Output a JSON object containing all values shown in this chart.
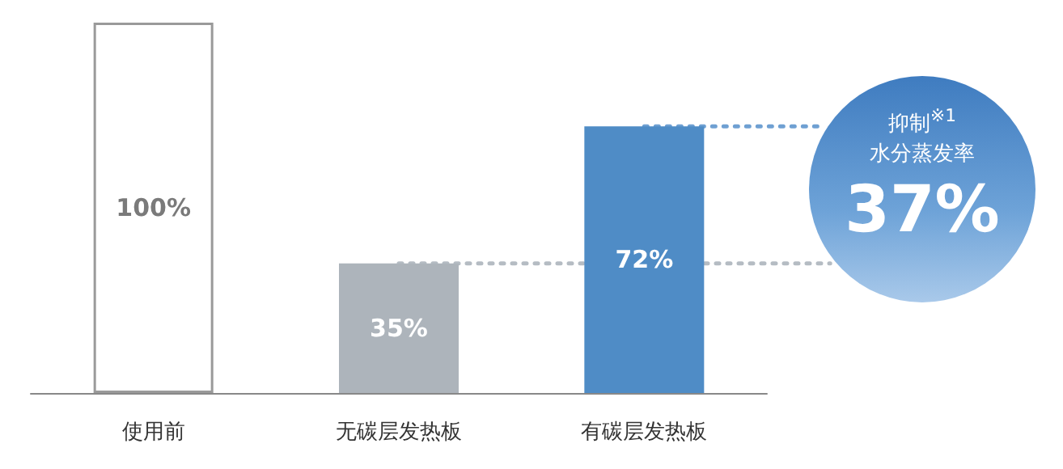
{
  "chart_data": {
    "type": "bar",
    "categories": [
      "使用前",
      "无碳层发热板",
      "有碳层发热板"
    ],
    "values": [
      100,
      35,
      72
    ],
    "colors": [
      "#ffffff",
      "#adb4bb",
      "#4f8cc6"
    ],
    "value_labels": [
      "100%",
      "35%",
      "72%"
    ],
    "ylim": [
      0,
      100
    ],
    "tick_labels": "x",
    "ref_lines": [
      {
        "axis": "y",
        "value": 72,
        "color": "#6fa0d2",
        "line_style": "dotted"
      },
      {
        "axis": "y",
        "value": 35,
        "color": "#b5bcc3",
        "line_style": "dotted"
      }
    ],
    "annotations": [
      "抑制$^{※1}$",
      "水分蒸发率",
      "37%"
    ]
  }
}
